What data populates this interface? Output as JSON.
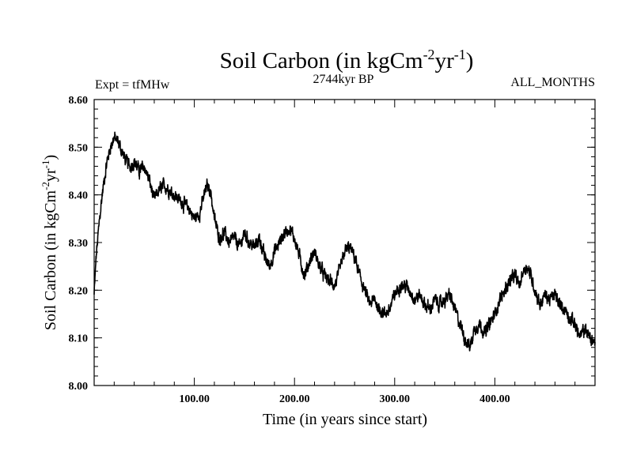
{
  "chart_data": {
    "type": "line",
    "title": {
      "main": "Soil Carbon (in kgCm",
      "sup1": "-2",
      "mid": "yr",
      "sup2": "-1",
      "end": ")"
    },
    "experiment": "Expt = tfMHw",
    "period": "2744kyr BP",
    "season": "ALL_MONTHS",
    "xlabel": "Time (in years since start)",
    "ylabel": {
      "main": "Soil Carbon (in kgCm",
      "sup1": "-2",
      "mid": "yr",
      "sup2": "-1",
      "end": ")"
    },
    "xlim": [
      0,
      500
    ],
    "ylim": [
      8.0,
      8.6
    ],
    "xticks": [
      100,
      200,
      300,
      400
    ],
    "xtick_labels": [
      "100.00",
      "200.00",
      "300.00",
      "400.00"
    ],
    "yticks": [
      8.0,
      8.1,
      8.2,
      8.3,
      8.4,
      8.5,
      8.6
    ],
    "ytick_labels": [
      "8.00",
      "8.10",
      "8.20",
      "8.30",
      "8.40",
      "8.50",
      "8.60"
    ],
    "series": [
      {
        "name": "Soil Carbon",
        "color": "#000000",
        "x": [
          0,
          2,
          5,
          8,
          12,
          16,
          20,
          24,
          28,
          32,
          36,
          40,
          45,
          50,
          55,
          60,
          65,
          70,
          75,
          80,
          85,
          90,
          95,
          100,
          105,
          110,
          113,
          116,
          120,
          125,
          130,
          135,
          140,
          145,
          150,
          155,
          160,
          165,
          170,
          175,
          180,
          185,
          190,
          195,
          200,
          205,
          210,
          215,
          220,
          225,
          230,
          235,
          240,
          245,
          250,
          255,
          260,
          265,
          270,
          275,
          280,
          285,
          290,
          295,
          300,
          305,
          310,
          315,
          320,
          325,
          330,
          335,
          340,
          345,
          350,
          355,
          360,
          365,
          370,
          375,
          380,
          385,
          390,
          395,
          400,
          405,
          410,
          415,
          420,
          425,
          428,
          432,
          436,
          440,
          445,
          450,
          455,
          460,
          465,
          470,
          475,
          480,
          485,
          490,
          495,
          500
        ],
        "y": [
          8.19,
          8.27,
          8.34,
          8.4,
          8.46,
          8.5,
          8.52,
          8.51,
          8.49,
          8.47,
          8.46,
          8.47,
          8.45,
          8.46,
          8.43,
          8.39,
          8.41,
          8.42,
          8.41,
          8.4,
          8.39,
          8.38,
          8.37,
          8.35,
          8.36,
          8.4,
          8.42,
          8.41,
          8.35,
          8.31,
          8.32,
          8.3,
          8.31,
          8.29,
          8.32,
          8.3,
          8.29,
          8.31,
          8.27,
          8.25,
          8.28,
          8.3,
          8.32,
          8.33,
          8.31,
          8.27,
          8.23,
          8.26,
          8.28,
          8.25,
          8.23,
          8.22,
          8.21,
          8.24,
          8.28,
          8.29,
          8.27,
          8.23,
          8.2,
          8.17,
          8.18,
          8.16,
          8.15,
          8.16,
          8.19,
          8.21,
          8.21,
          8.2,
          8.18,
          8.19,
          8.17,
          8.16,
          8.18,
          8.17,
          8.18,
          8.19,
          8.16,
          8.13,
          8.1,
          8.08,
          8.12,
          8.13,
          8.11,
          8.13,
          8.15,
          8.18,
          8.2,
          8.22,
          8.23,
          8.21,
          8.24,
          8.25,
          8.23,
          8.2,
          8.17,
          8.19,
          8.18,
          8.19,
          8.17,
          8.16,
          8.14,
          8.13,
          8.1,
          8.12,
          8.1,
          8.09
        ]
      }
    ]
  }
}
